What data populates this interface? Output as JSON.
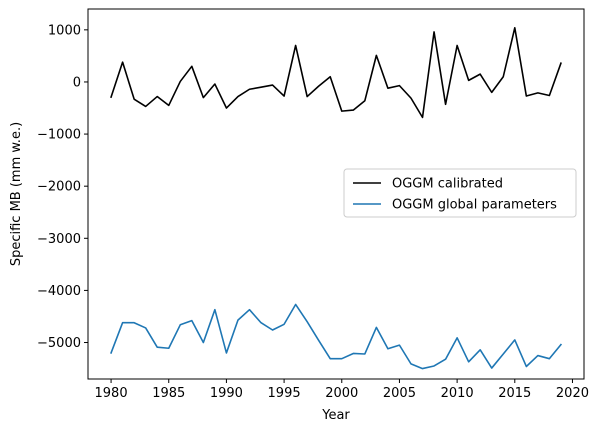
{
  "chart_data": {
    "type": "line",
    "xlabel": "Year",
    "ylabel": "Specific MB (mm w.e.)",
    "xlim": [
      1978,
      2021
    ],
    "ylim": [
      -5700,
      1400
    ],
    "xticks": [
      1980,
      1985,
      1990,
      1995,
      2000,
      2005,
      2010,
      2015,
      2020
    ],
    "xtick_labels": [
      "1980",
      "1985",
      "1990",
      "1995",
      "2000",
      "2005",
      "2010",
      "2015",
      "2020"
    ],
    "yticks": [
      1000,
      0,
      -1000,
      -2000,
      -3000,
      -4000,
      -5000
    ],
    "ytick_labels": [
      "1000",
      "0",
      "−1000",
      "−2000",
      "−3000",
      "−4000",
      "−5000"
    ],
    "legend_position": "center-right",
    "grid": false,
    "x": [
      1980,
      1981,
      1982,
      1983,
      1984,
      1985,
      1986,
      1987,
      1988,
      1989,
      1990,
      1991,
      1992,
      1993,
      1994,
      1995,
      1996,
      1997,
      1998,
      1999,
      2000,
      2001,
      2002,
      2003,
      2004,
      2005,
      2006,
      2007,
      2008,
      2009,
      2010,
      2011,
      2012,
      2013,
      2014,
      2015,
      2016,
      2017,
      2018,
      2019
    ],
    "series": [
      {
        "name": "OGGM calibrated",
        "color": "#000000",
        "values": [
          -290,
          380,
          -330,
          -470,
          -280,
          -450,
          10,
          300,
          -300,
          -40,
          -500,
          -280,
          -140,
          -100,
          -60,
          -270,
          700,
          -280,
          -80,
          100,
          -560,
          -540,
          -360,
          510,
          -120,
          -70,
          -310,
          -680,
          960,
          -430,
          700,
          30,
          150,
          -200,
          100,
          1040,
          -270,
          -210,
          -260,
          360
        ]
      },
      {
        "name": "OGGM global parameters",
        "color": "#1f77b4",
        "values": [
          -5200,
          -4620,
          -4620,
          -4720,
          -5090,
          -5110,
          -4660,
          -4580,
          -5000,
          -4370,
          -5200,
          -4570,
          -4370,
          -4620,
          -4760,
          -4650,
          -4270,
          -4600,
          -4960,
          -5310,
          -5310,
          -5210,
          -5220,
          -4710,
          -5120,
          -5050,
          -5410,
          -5500,
          -5450,
          -5320,
          -4910,
          -5370,
          -5140,
          -5490,
          -5220,
          -4950,
          -5460,
          -5250,
          -5310,
          -5040
        ]
      }
    ]
  }
}
